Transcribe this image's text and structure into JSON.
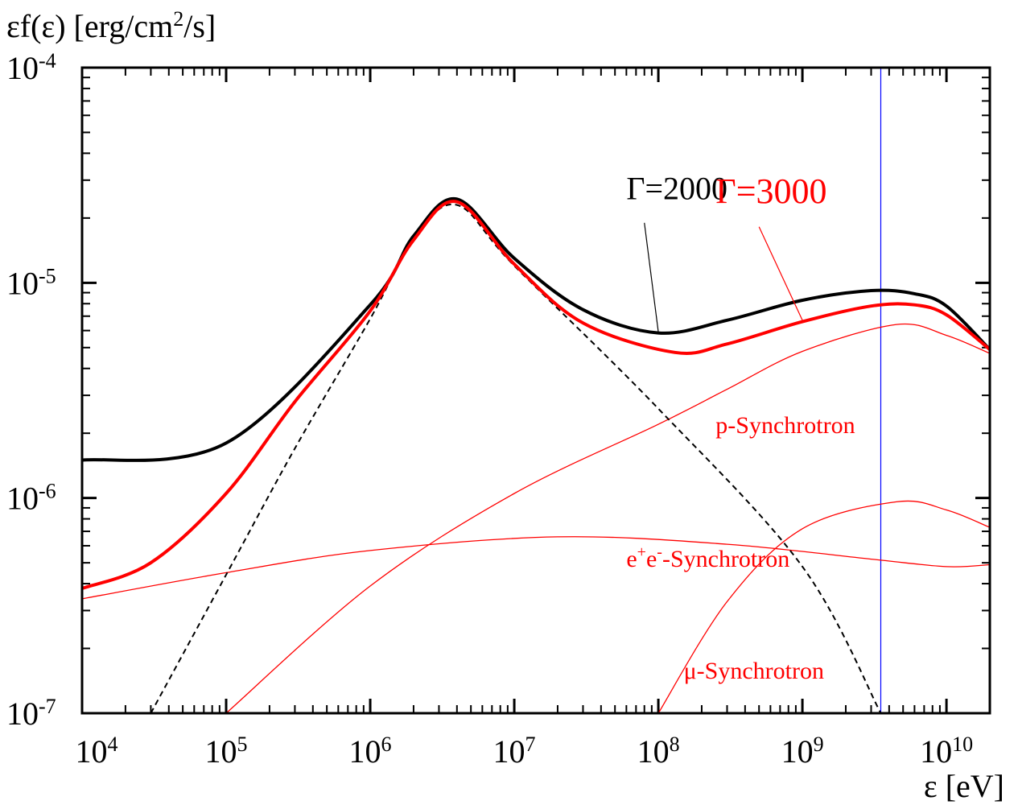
{
  "chart_data": {
    "type": "line",
    "title": "",
    "ylabel": "εf(ε) [erg/cm²/s]",
    "ylabel_parts": {
      "main": "εf(ε) [erg/cm",
      "sup": "2",
      "tail": "/s]"
    },
    "xlabel": "ε [eV]",
    "xscale": "log",
    "yscale": "log",
    "xlim": [
      10000,
      20000000000
    ],
    "ylim": [
      1e-07,
      0.0001
    ],
    "x_ticks": [
      {
        "value": 10000,
        "base": "10",
        "exp": "4"
      },
      {
        "value": 100000,
        "base": "10",
        "exp": "5"
      },
      {
        "value": 1000000,
        "base": "10",
        "exp": "6"
      },
      {
        "value": 10000000,
        "base": "10",
        "exp": "7"
      },
      {
        "value": 100000000,
        "base": "10",
        "exp": "8"
      },
      {
        "value": 1000000000,
        "base": "10",
        "exp": "9"
      },
      {
        "value": 10000000000,
        "base": "10",
        "exp": "10"
      }
    ],
    "y_ticks": [
      {
        "value": 1e-07,
        "base": "10",
        "exp": "-7"
      },
      {
        "value": 1e-06,
        "base": "10",
        "exp": "-6"
      },
      {
        "value": 1e-05,
        "base": "10",
        "exp": "-5"
      },
      {
        "value": 0.0001,
        "base": "10",
        "exp": "-4"
      }
    ],
    "vertical_line": {
      "x": 3500000000,
      "color": "#0000ff"
    },
    "series": [
      {
        "name": "Γ=2000",
        "color": "#000000",
        "style": "thick",
        "points": [
          [
            10000,
            1.5e-06
          ],
          [
            100000,
            1.8e-06
          ],
          [
            1000000,
            7.9e-06
          ],
          [
            2000000,
            1.65e-05
          ],
          [
            4000000,
            2.45e-05
          ],
          [
            10000000,
            1.3e-05
          ],
          [
            30000000,
            7.5e-06
          ],
          [
            100000000,
            5.85e-06
          ],
          [
            300000000,
            6.7e-06
          ],
          [
            1000000000,
            8.3e-06
          ],
          [
            3000000000,
            9.2e-06
          ],
          [
            6000000000,
            8.9e-06
          ],
          [
            10000000000,
            7.8e-06
          ],
          [
            20000000000,
            4.9e-06
          ]
        ]
      },
      {
        "name": "Γ=3000",
        "color": "#ff0000",
        "style": "thick",
        "points": [
          [
            10000,
            3.8e-07
          ],
          [
            30000,
            5e-07
          ],
          [
            100000,
            1.05e-06
          ],
          [
            300000,
            2.8e-06
          ],
          [
            1000000,
            7.4e-06
          ],
          [
            2000000,
            1.58e-05
          ],
          [
            4000000,
            2.38e-05
          ],
          [
            10000000,
            1.22e-05
          ],
          [
            30000000,
            6.5e-06
          ],
          [
            130000000,
            4.75e-06
          ],
          [
            300000000,
            5.2e-06
          ],
          [
            1000000000,
            6.6e-06
          ],
          [
            3000000000,
            7.8e-06
          ],
          [
            6000000000,
            7.9e-06
          ],
          [
            10000000000,
            7.1e-06
          ],
          [
            20000000000,
            4.9e-06
          ]
        ]
      },
      {
        "name": "dashed",
        "color": "#000000",
        "style": "dashed",
        "points": [
          [
            30000,
            1e-07
          ],
          [
            100000,
            4.4e-07
          ],
          [
            300000,
            1.7e-06
          ],
          [
            1000000,
            6.8e-06
          ],
          [
            2000000,
            1.6e-05
          ],
          [
            4000000,
            2.3e-05
          ],
          [
            10000000,
            1.2e-05
          ],
          [
            100000000,
            2.6e-06
          ],
          [
            1000000000,
            4.8e-07
          ],
          [
            3500000000,
            1e-07
          ]
        ]
      },
      {
        "name": "p-Synchrotron",
        "color": "#ff0000",
        "style": "thin",
        "points": [
          [
            100000,
            1e-07
          ],
          [
            1000000,
            3.9e-07
          ],
          [
            10000000,
            1.05e-06
          ],
          [
            100000000,
            2.2e-06
          ],
          [
            300000000,
            3.2e-06
          ],
          [
            1000000000,
            4.8e-06
          ],
          [
            4500000000,
            6.4e-06
          ],
          [
            10000000000,
            5.7e-06
          ],
          [
            20000000000,
            4.7e-06
          ]
        ]
      },
      {
        "name": "e⁺e⁻-Synchrotron",
        "color": "#ff0000",
        "style": "thin",
        "points": [
          [
            10000,
            3.4e-07
          ],
          [
            100000,
            4.5e-07
          ],
          [
            1000000,
            5.7e-07
          ],
          [
            20000000,
            6.6e-07
          ],
          [
            300000000,
            6.1e-07
          ],
          [
            3000000000,
            5.2e-07
          ],
          [
            10000000000,
            4.8e-07
          ],
          [
            20000000000,
            4.9e-07
          ]
        ]
      },
      {
        "name": "μ-Synchrotron",
        "color": "#ff0000",
        "style": "thin",
        "points": [
          [
            100000000,
            1e-07
          ],
          [
            300000000,
            3.3e-07
          ],
          [
            1000000000,
            7.2e-07
          ],
          [
            4500000000,
            9.6e-07
          ],
          [
            10000000000,
            8.8e-07
          ],
          [
            20000000000,
            7.3e-07
          ]
        ]
      }
    ],
    "annotations": [
      {
        "id": "g2000",
        "text": "Γ=2000",
        "color": "#000000",
        "size": 40,
        "x": 60000000,
        "y": 2.45e-05,
        "pointer": [
          [
            80000000,
            1.9e-05
          ],
          [
            100000000,
            5.9e-06
          ]
        ]
      },
      {
        "id": "g3000",
        "text": "Γ=3000",
        "color": "#ff0000",
        "size": 44,
        "x": 250000000,
        "y": 2.35e-05,
        "pointer": [
          [
            500000000,
            1.82e-05
          ],
          [
            1000000000,
            6.7e-06
          ]
        ]
      },
      {
        "id": "psyn",
        "text": "p-Synchrotron",
        "color": "#ff0000",
        "size": 30,
        "x": 250000000,
        "y": 2e-06
      },
      {
        "id": "eesyn",
        "text_parts": [
          "e",
          "+",
          "e",
          "-",
          "-Synchrotron"
        ],
        "color": "#ff0000",
        "size": 30,
        "x": 60000000,
        "y": 4.8e-07
      },
      {
        "id": "musyn",
        "text": "μ-Synchrotron",
        "color": "#ff0000",
        "size": 30,
        "x": 150000000,
        "y": 1.45e-07
      }
    ]
  }
}
